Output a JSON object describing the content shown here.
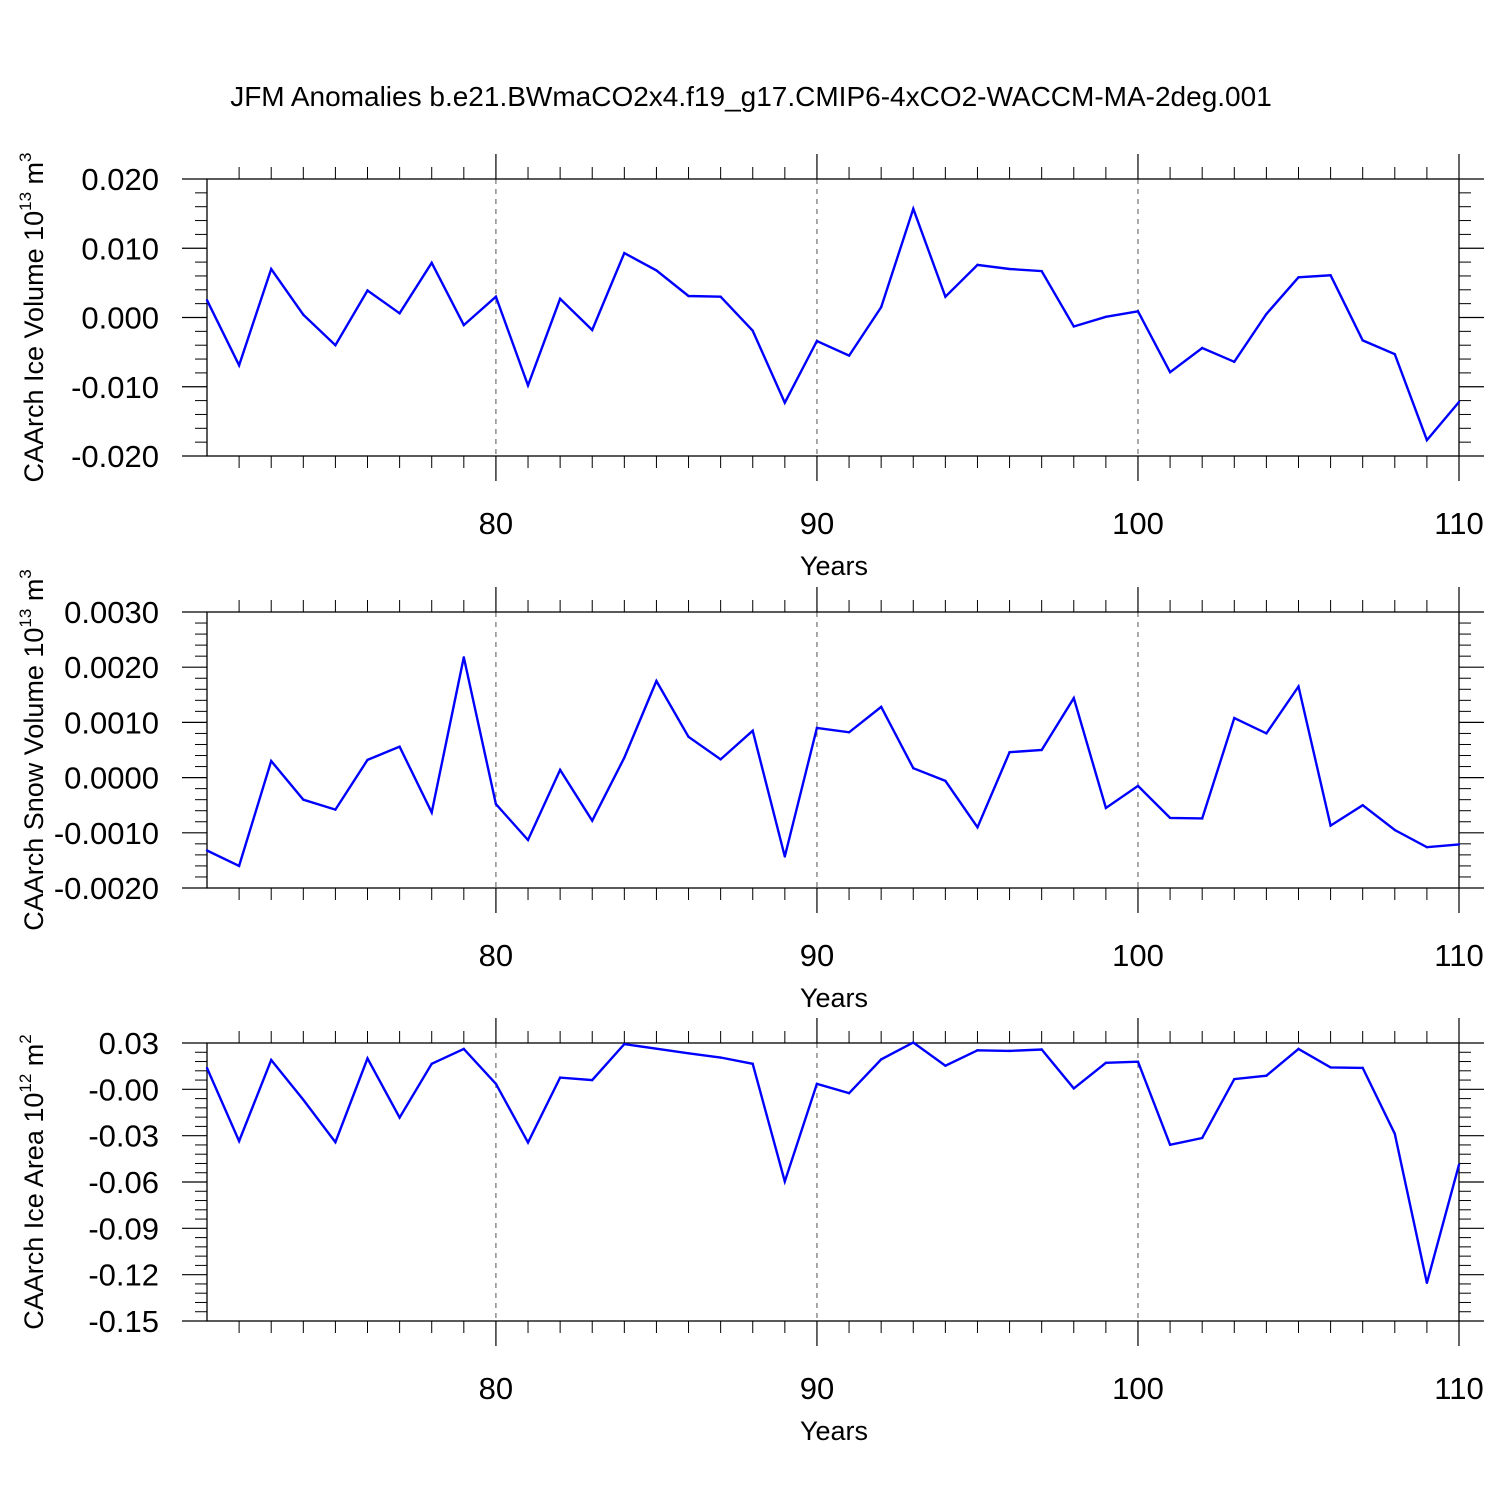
{
  "title": "JFM Anomalies b.e21.BWmaCO2x4.f19_g17.CMIP6-4xCO2-WACCM-MA-2deg.001",
  "line_color": "#0000ff",
  "chart_data": [
    {
      "type": "line",
      "name": "ice-volume",
      "ylabel": "CAArch Ice Volume 10",
      "ylabel_exp": "13",
      "ylabel_unit": " m",
      "ylabel_unit_exp": "3",
      "xlabel": "Years",
      "xlim": [
        71,
        110
      ],
      "ylim": [
        -0.02,
        0.02
      ],
      "xticks": [
        80,
        90,
        100,
        110
      ],
      "xtick_labels": [
        "80",
        "90",
        "100",
        "110"
      ],
      "yticks": [
        -0.02,
        -0.01,
        0.0,
        0.01,
        0.02
      ],
      "ytick_labels": [
        "-0.020",
        "-0.010",
        "0.000",
        "0.010",
        "0.020"
      ],
      "grid_x": [
        80,
        90,
        100
      ],
      "x": [
        71,
        72,
        73,
        74,
        75,
        76,
        77,
        78,
        79,
        80,
        81,
        82,
        83,
        84,
        85,
        86,
        87,
        88,
        89,
        90,
        91,
        92,
        93,
        94,
        95,
        96,
        97,
        98,
        99,
        100,
        101,
        102,
        103,
        104,
        105,
        106,
        107,
        108,
        109,
        110
      ],
      "values": [
        0.0025,
        -0.0069,
        0.007,
        0.0004,
        -0.004,
        0.0039,
        0.0006,
        0.0079,
        -0.0011,
        0.003,
        -0.0098,
        0.0027,
        -0.0018,
        0.0093,
        0.0068,
        0.0031,
        0.003,
        -0.0019,
        -0.0123,
        -0.0034,
        -0.0055,
        0.0015,
        0.0157,
        0.003,
        0.0076,
        0.007,
        0.0067,
        -0.0013,
        0.0001,
        0.0009,
        -0.0079,
        -0.0044,
        -0.0064,
        0.0005,
        0.0058,
        0.0061,
        -0.0033,
        -0.0053,
        -0.0177,
        -0.0122
      ]
    },
    {
      "type": "line",
      "name": "snow-volume",
      "ylabel": "CAArch Snow Volume 10",
      "ylabel_exp": "13",
      "ylabel_unit": " m",
      "ylabel_unit_exp": "3",
      "xlabel": "Years",
      "xlim": [
        71,
        110
      ],
      "ylim": [
        -0.002,
        0.003
      ],
      "xticks": [
        80,
        90,
        100,
        110
      ],
      "xtick_labels": [
        "80",
        "90",
        "100",
        "110"
      ],
      "yticks": [
        -0.002,
        -0.001,
        0.0,
        0.001,
        0.002,
        0.003
      ],
      "ytick_labels": [
        "-0.0020",
        "-0.0010",
        "0.0000",
        "0.0010",
        "0.0020",
        "0.0030"
      ],
      "grid_x": [
        80,
        90,
        100
      ],
      "x": [
        71,
        72,
        73,
        74,
        75,
        76,
        77,
        78,
        79,
        80,
        81,
        82,
        83,
        84,
        85,
        86,
        87,
        88,
        89,
        90,
        91,
        92,
        93,
        94,
        95,
        96,
        97,
        98,
        99,
        100,
        101,
        102,
        103,
        104,
        105,
        106,
        107,
        108,
        109,
        110
      ],
      "values": [
        -0.00132,
        -0.0016,
        0.0003,
        -0.0004,
        -0.00058,
        0.00032,
        0.00056,
        -0.00063,
        0.00218,
        -0.00048,
        -0.00113,
        0.00014,
        -0.00078,
        0.00036,
        0.00175,
        0.00074,
        0.00033,
        0.00085,
        -0.00143,
        0.0009,
        0.00082,
        0.00128,
        0.00017,
        -6e-05,
        -0.0009,
        0.00046,
        0.0005,
        0.00144,
        -0.00055,
        -0.00015,
        -0.00073,
        -0.00074,
        0.00108,
        0.0008,
        0.00165,
        -0.00087,
        -0.0005,
        -0.00095,
        -0.00126,
        -0.00121
      ]
    },
    {
      "type": "line",
      "name": "ice-area",
      "ylabel": "CAArch Ice Area 10",
      "ylabel_exp": "12",
      "ylabel_unit": " m",
      "ylabel_unit_exp": "2",
      "xlabel": "Years",
      "xlim": [
        71,
        110
      ],
      "ylim": [
        -0.15,
        0.03
      ],
      "xticks": [
        80,
        90,
        100,
        110
      ],
      "xtick_labels": [
        "80",
        "90",
        "100",
        "110"
      ],
      "yticks": [
        -0.15,
        -0.12,
        -0.09,
        -0.06,
        -0.03,
        0.0,
        0.03
      ],
      "ytick_labels": [
        "-0.15",
        "-0.12",
        "-0.09",
        "-0.06",
        "-0.03",
        "-0.00",
        "0.03"
      ],
      "grid_x": [
        80,
        90,
        100
      ],
      "x": [
        71,
        72,
        73,
        74,
        75,
        76,
        77,
        78,
        79,
        80,
        81,
        82,
        83,
        84,
        85,
        86,
        87,
        88,
        89,
        90,
        91,
        92,
        93,
        94,
        95,
        96,
        97,
        98,
        99,
        100,
        101,
        102,
        103,
        104,
        105,
        106,
        107,
        108,
        109,
        110
      ],
      "values": [
        0.0138,
        -0.0335,
        0.019,
        -0.0068,
        -0.0342,
        0.02,
        -0.0183,
        0.0165,
        0.0262,
        0.0036,
        -0.0344,
        0.0076,
        0.006,
        0.0293,
        0.0263,
        0.0233,
        0.0206,
        0.0165,
        -0.0597,
        0.0036,
        -0.0025,
        0.0194,
        0.0303,
        0.0153,
        0.0253,
        0.0249,
        0.0258,
        0.0006,
        0.0172,
        0.0179,
        -0.0359,
        -0.0315,
        0.0066,
        0.0088,
        0.0262,
        0.0142,
        0.0139,
        -0.0288,
        -0.1253,
        -0.0488
      ]
    }
  ]
}
